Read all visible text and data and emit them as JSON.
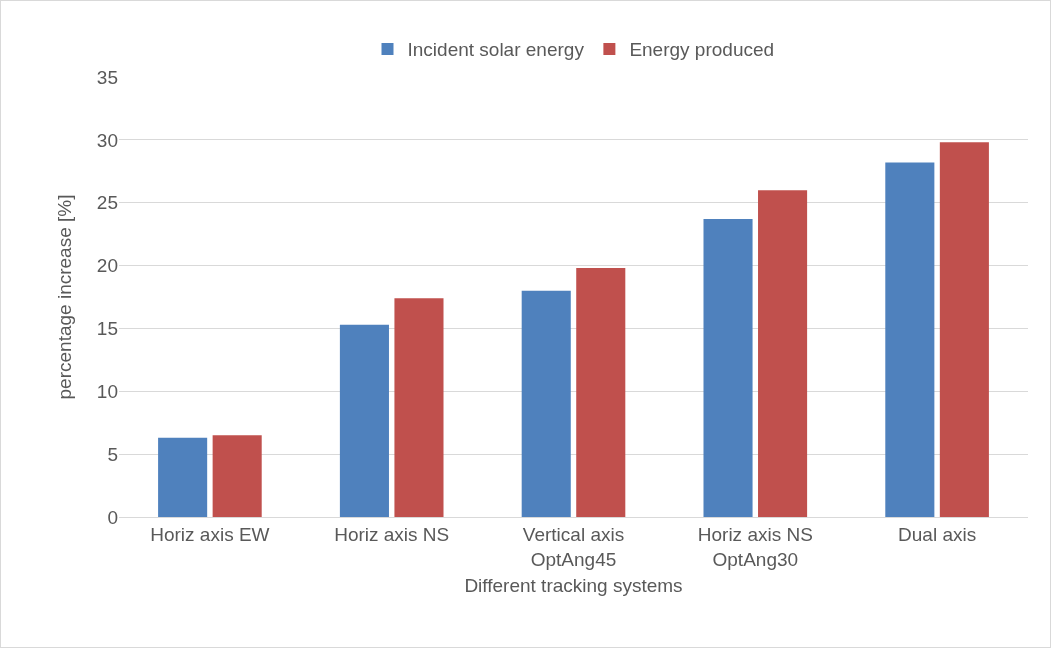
{
  "chart_data": {
    "type": "bar",
    "xlabel": "Different tracking systems",
    "ylabel": "percentage increase [%]",
    "categories": [
      "Horiz axis EW",
      "Horiz axis NS",
      "Vertical axis\nOptAng45",
      "Horiz axis NS\nOptAng30",
      "Dual axis"
    ],
    "series": [
      {
        "name": "Incident solar energy",
        "color": "#4f81bd",
        "values": [
          6.3,
          15.3,
          18.0,
          23.7,
          28.2
        ]
      },
      {
        "name": "Energy produced",
        "color": "#c0504d",
        "values": [
          6.5,
          17.4,
          19.8,
          26.0,
          29.8
        ]
      }
    ],
    "ylim": [
      0,
      35
    ],
    "yticks": [
      0,
      5,
      10,
      15,
      20,
      25,
      30,
      35
    ],
    "grid": "y",
    "legend": "top"
  }
}
